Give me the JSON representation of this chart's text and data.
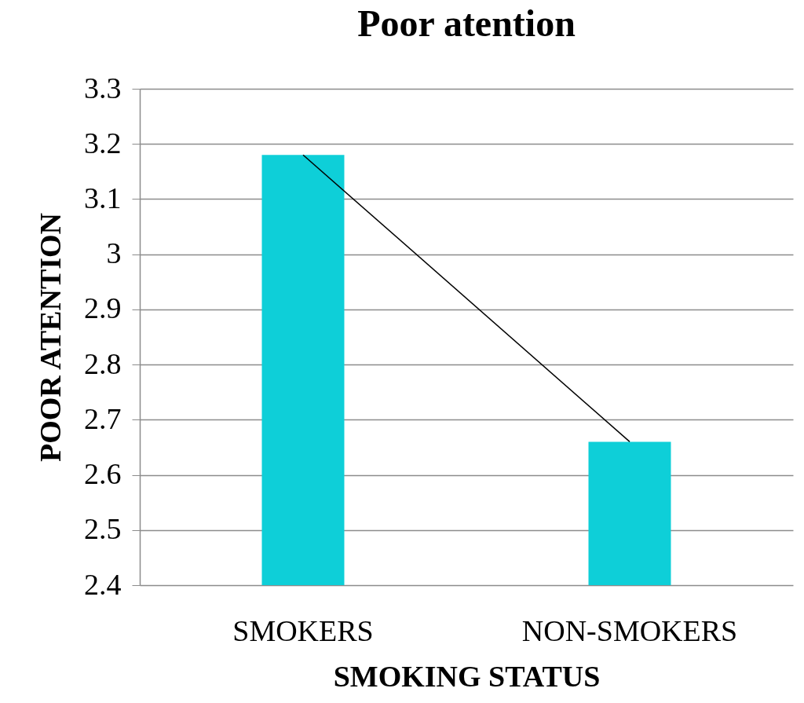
{
  "chart_data": {
    "type": "bar",
    "title": "Poor atention",
    "xlabel": "SMOKING STATUS",
    "ylabel": "POOR ATENTION",
    "categories": [
      "SMOKERS",
      "NON-SMOKERS"
    ],
    "series": [
      {
        "color": "#0ecfd8",
        "values": [
          3.18,
          2.66
        ]
      },
      {
        "type": "line",
        "color": "#000000",
        "values": [
          3.18,
          2.66
        ]
      }
    ],
    "ylim": [
      2.4,
      3.3
    ],
    "yticks": [
      2.4,
      2.5,
      2.6,
      2.7,
      2.8,
      2.9,
      3,
      3.1,
      3.2,
      3.3
    ],
    "grid": "y",
    "marker": "none",
    "line_style": "solid"
  }
}
